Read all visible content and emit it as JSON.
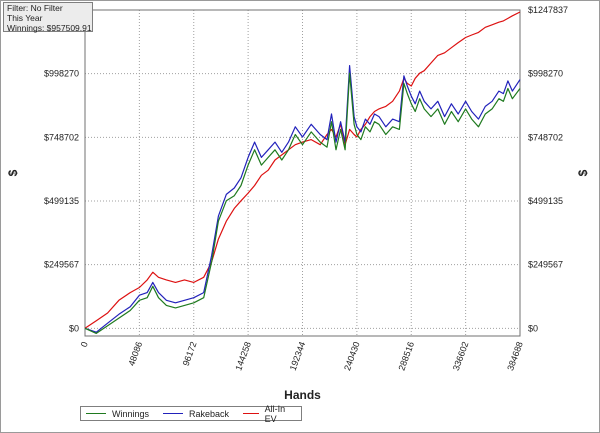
{
  "info_box": {
    "filter": "Filter: No Filter",
    "period": "This Year",
    "winnings": "Winnings: $957509.91"
  },
  "chart_data": {
    "type": "line",
    "xlabel": "Hands",
    "ylabel": "$",
    "x_ticks": [
      "0",
      "48086",
      "96172",
      "144258",
      "192344",
      "240430",
      "288516",
      "336602",
      "384688"
    ],
    "y_ticks_left": [
      "$0",
      "$249567",
      "$499135",
      "$748702",
      "$998270"
    ],
    "y_ticks_right": [
      "$0",
      "$249567",
      "$499135",
      "$748702",
      "$998270",
      "$1247837"
    ],
    "xlim": [
      0,
      384688
    ],
    "ylim": [
      -30000,
      1247837
    ],
    "grid": true,
    "legend_position": "bottom-left",
    "x": [
      0,
      10000,
      20000,
      30000,
      40000,
      48086,
      55000,
      60000,
      65000,
      72000,
      80000,
      88000,
      96172,
      105000,
      112000,
      118000,
      125000,
      132000,
      138000,
      144258,
      150000,
      156000,
      162000,
      168000,
      174000,
      180000,
      186000,
      192344,
      200000,
      208000,
      214000,
      218000,
      222000,
      226000,
      230000,
      234000,
      238000,
      240430,
      244000,
      248000,
      252000,
      256000,
      260000,
      266000,
      272000,
      278000,
      282000,
      285000,
      288516,
      292000,
      296000,
      300000,
      306000,
      312000,
      318000,
      324000,
      330000,
      336602,
      342000,
      348000,
      354000,
      360000,
      366000,
      370000,
      374000,
      378000,
      384688
    ],
    "series": [
      {
        "name": "Winnings",
        "color": "#1f7a1f",
        "values": [
          0,
          -20000,
          10000,
          40000,
          70000,
          110000,
          120000,
          165000,
          120000,
          90000,
          80000,
          90000,
          100000,
          120000,
          260000,
          420000,
          500000,
          520000,
          560000,
          640000,
          700000,
          640000,
          670000,
          700000,
          660000,
          700000,
          760000,
          720000,
          770000,
          730000,
          710000,
          810000,
          700000,
          780000,
          700000,
          1000000,
          800000,
          760000,
          740000,
          790000,
          770000,
          810000,
          800000,
          760000,
          790000,
          780000,
          960000,
          920000,
          880000,
          850000,
          900000,
          860000,
          830000,
          860000,
          800000,
          850000,
          810000,
          860000,
          820000,
          790000,
          840000,
          860000,
          900000,
          890000,
          940000,
          900000,
          940000
        ]
      },
      {
        "name": "Rakeback",
        "color": "#2222bb",
        "values": [
          0,
          -15000,
          20000,
          55000,
          85000,
          130000,
          140000,
          180000,
          140000,
          110000,
          100000,
          110000,
          120000,
          140000,
          285000,
          440000,
          525000,
          550000,
          590000,
          670000,
          730000,
          670000,
          700000,
          730000,
          690000,
          730000,
          790000,
          750000,
          800000,
          760000,
          740000,
          840000,
          730000,
          810000,
          730000,
          1030000,
          830000,
          790000,
          770000,
          820000,
          800000,
          840000,
          830000,
          790000,
          820000,
          810000,
          990000,
          950000,
          910000,
          880000,
          930000,
          890000,
          860000,
          890000,
          830000,
          880000,
          840000,
          890000,
          850000,
          820000,
          870000,
          890000,
          930000,
          920000,
          970000,
          930000,
          975000
        ]
      },
      {
        "name": "All-In EV",
        "color": "#dd1111",
        "values": [
          0,
          30000,
          60000,
          110000,
          140000,
          160000,
          190000,
          220000,
          200000,
          190000,
          180000,
          190000,
          180000,
          200000,
          260000,
          350000,
          420000,
          470000,
          500000,
          530000,
          560000,
          600000,
          620000,
          660000,
          680000,
          700000,
          720000,
          730000,
          740000,
          720000,
          760000,
          780000,
          750000,
          800000,
          720000,
          780000,
          760000,
          750000,
          780000,
          800000,
          830000,
          850000,
          860000,
          870000,
          890000,
          930000,
          980000,
          960000,
          950000,
          980000,
          1000000,
          1010000,
          1040000,
          1070000,
          1080000,
          1100000,
          1120000,
          1140000,
          1150000,
          1160000,
          1180000,
          1190000,
          1200000,
          1205000,
          1215000,
          1225000,
          1240000
        ]
      }
    ]
  }
}
